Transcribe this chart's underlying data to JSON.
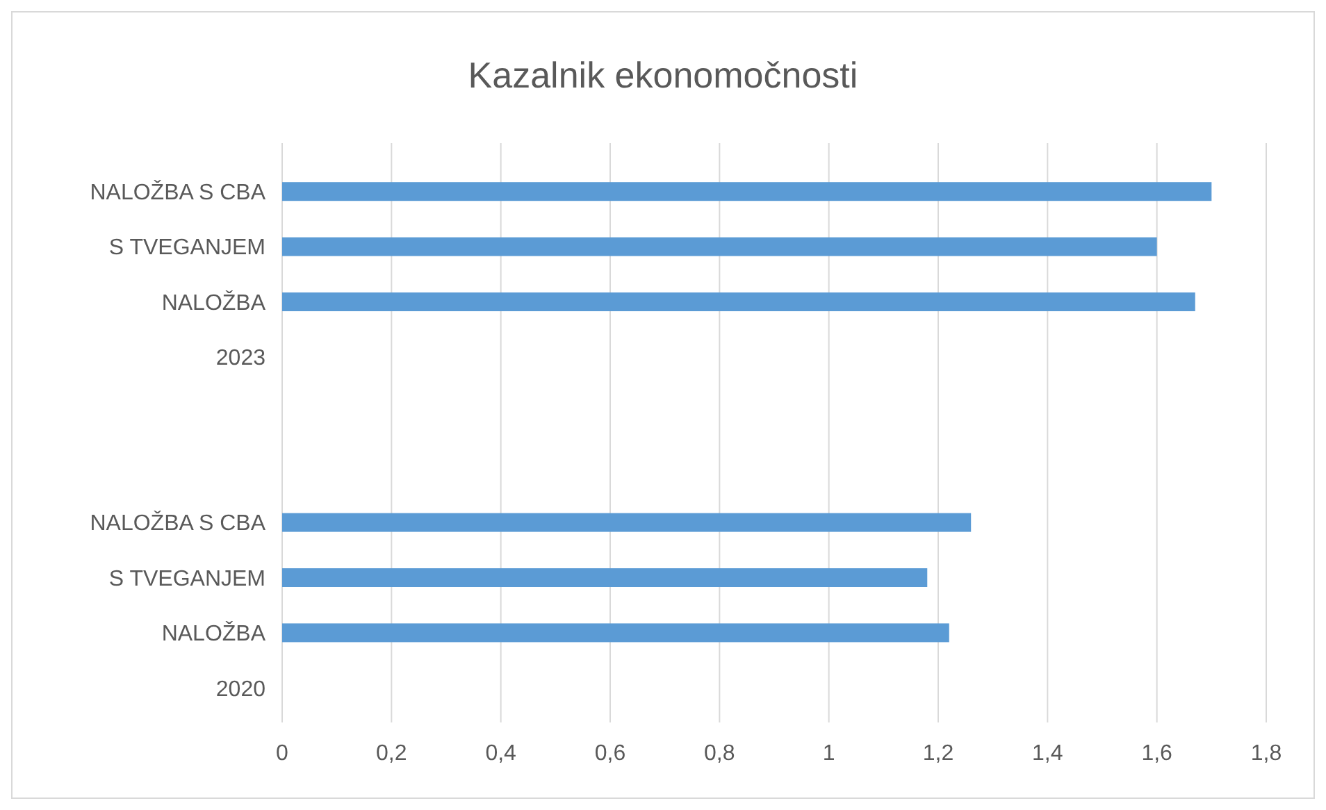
{
  "chart_data": {
    "type": "bar",
    "orientation": "horizontal",
    "title": "Kazalnik ekonomočnosti",
    "categories": [
      "NALOŽBA S CBA",
      "S TVEGANJEM",
      "NALOŽBA",
      "2023",
      null,
      null,
      "NALOŽBA S CBA",
      "S TVEGANJEM",
      "NALOŽBA",
      "2020"
    ],
    "values": [
      1.7,
      1.6,
      1.67,
      null,
      null,
      null,
      1.26,
      1.18,
      1.22,
      null
    ],
    "color": "#5b9bd5",
    "xlim": [
      0,
      1.8
    ],
    "xticks": [
      0,
      {
        "value": 0.2,
        "label": "0,2"
      },
      {
        "value": 0.4,
        "label": "0,4"
      },
      {
        "value": 0.6,
        "label": "0,6"
      },
      {
        "value": 0.8,
        "label": "0,8"
      },
      1,
      {
        "value": 1.2,
        "label": "1,2"
      },
      {
        "value": 1.4,
        "label": "1,4"
      },
      {
        "value": 1.6,
        "label": "1,6"
      },
      {
        "value": 1.8,
        "label": "1,8"
      }
    ],
    "grid": "x"
  }
}
